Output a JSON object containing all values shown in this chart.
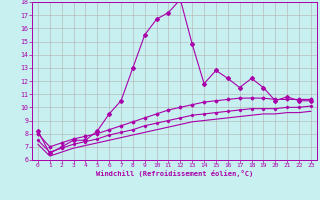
{
  "xlabel": "Windchill (Refroidissement éolien,°C)",
  "xlim": [
    -0.5,
    23.5
  ],
  "ylim": [
    6,
    18
  ],
  "xticks": [
    0,
    1,
    2,
    3,
    4,
    5,
    6,
    7,
    8,
    9,
    10,
    11,
    12,
    13,
    14,
    15,
    16,
    17,
    18,
    19,
    20,
    21,
    22,
    23
  ],
  "yticks": [
    6,
    7,
    8,
    9,
    10,
    11,
    12,
    13,
    14,
    15,
    16,
    17,
    18
  ],
  "bg_color": "#c8f0f0",
  "line_color": "#aa00aa",
  "grid_color": "#b0b0b0",
  "line1_x": [
    0,
    1,
    2,
    3,
    4,
    5,
    6,
    7,
    8,
    9,
    10,
    11,
    12,
    13,
    14,
    15,
    16,
    17,
    18,
    19,
    20,
    21,
    22,
    23
  ],
  "line1_y": [
    8.2,
    6.5,
    7.0,
    7.5,
    7.5,
    8.2,
    9.5,
    10.5,
    13.0,
    15.5,
    16.7,
    17.2,
    18.2,
    14.8,
    11.8,
    12.8,
    12.2,
    11.5,
    12.2,
    11.5,
    10.5,
    10.8,
    10.5,
    10.5
  ],
  "line2_x": [
    0,
    1,
    2,
    3,
    4,
    5,
    6,
    7,
    8,
    9,
    10,
    11,
    12,
    13,
    14,
    15,
    16,
    17,
    18,
    19,
    20,
    21,
    22,
    23
  ],
  "line2_y": [
    8.0,
    7.0,
    7.3,
    7.6,
    7.8,
    8.0,
    8.3,
    8.6,
    8.9,
    9.2,
    9.5,
    9.8,
    10.0,
    10.2,
    10.4,
    10.5,
    10.6,
    10.7,
    10.7,
    10.7,
    10.6,
    10.6,
    10.6,
    10.6
  ],
  "line3_x": [
    0,
    1,
    2,
    3,
    4,
    5,
    6,
    7,
    8,
    9,
    10,
    11,
    12,
    13,
    14,
    15,
    16,
    17,
    18,
    19,
    20,
    21,
    22,
    23
  ],
  "line3_y": [
    7.5,
    6.6,
    6.9,
    7.2,
    7.4,
    7.6,
    7.9,
    8.1,
    8.3,
    8.6,
    8.8,
    9.0,
    9.2,
    9.4,
    9.5,
    9.6,
    9.7,
    9.8,
    9.9,
    9.9,
    9.9,
    10.0,
    10.0,
    10.1
  ],
  "line4_x": [
    0,
    1,
    2,
    3,
    4,
    5,
    6,
    7,
    8,
    9,
    10,
    11,
    12,
    13,
    14,
    15,
    16,
    17,
    18,
    19,
    20,
    21,
    22,
    23
  ],
  "line4_y": [
    7.2,
    6.3,
    6.6,
    6.9,
    7.1,
    7.3,
    7.5,
    7.7,
    7.9,
    8.1,
    8.3,
    8.5,
    8.7,
    8.9,
    9.0,
    9.1,
    9.2,
    9.3,
    9.4,
    9.5,
    9.5,
    9.6,
    9.6,
    9.7
  ]
}
